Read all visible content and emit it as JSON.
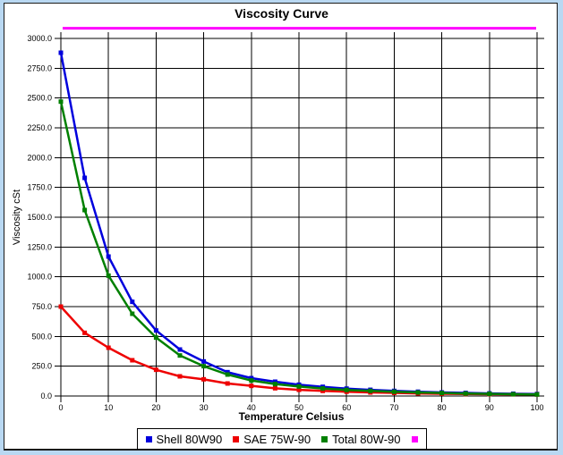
{
  "title": "Viscosity Curve",
  "colors": {
    "frame_background": "#b9d8f2",
    "panel_background": "#ffffff",
    "panel_border": "#1a1a1a",
    "grid": "#000000",
    "shell_blue": "#0000dd",
    "sae_red": "#ee0000",
    "total_green": "#008000",
    "limit_magenta": "#ff00ff"
  },
  "chart_data": {
    "type": "line",
    "title": "Viscosity Curve",
    "xlabel": "Temperature Celsius",
    "ylabel": "Viscosity cSt",
    "xlim": [
      0,
      100
    ],
    "ylim": [
      0,
      3000
    ],
    "grid": true,
    "legend_position": "bottom",
    "x_ticks": [
      0,
      10,
      20,
      30,
      40,
      50,
      60,
      70,
      80,
      90,
      100
    ],
    "x_tick_labels": [
      "0",
      "10",
      "20",
      "30",
      "40",
      "50",
      "60",
      "70",
      "80",
      "90",
      "100"
    ],
    "y_ticks": [
      0,
      250,
      500,
      750,
      1000,
      1250,
      1500,
      1750,
      2000,
      2250,
      2500,
      2750,
      3000
    ],
    "y_tick_labels": [
      "0.0",
      "250.0",
      "500.0",
      "750.0",
      "1000.0",
      "1250.0",
      "1500.0",
      "1750.0",
      "2000.0",
      "2250.0",
      "2500.0",
      "2750.0",
      "3000.0"
    ],
    "x": [
      0,
      5,
      10,
      15,
      20,
      25,
      30,
      35,
      40,
      45,
      50,
      55,
      60,
      65,
      70,
      75,
      80,
      85,
      90,
      95,
      100
    ],
    "series": [
      {
        "name": "Shell 80W90",
        "color": "#0000dd",
        "marker": "square",
        "values": [
          2880,
          1830,
          1170,
          790,
          550,
          390,
          290,
          200,
          150,
          120,
          95,
          77,
          62,
          52,
          43,
          36,
          30,
          26,
          22,
          19,
          17
        ]
      },
      {
        "name": "SAE 75W-90",
        "color": "#ee0000",
        "marker": "square",
        "values": [
          750,
          530,
          405,
          300,
          220,
          165,
          140,
          105,
          85,
          65,
          52,
          43,
          36,
          30,
          26,
          22,
          19,
          17,
          15,
          14,
          13
        ]
      },
      {
        "name": "Total 80W-90",
        "color": "#008000",
        "marker": "square",
        "values": [
          2470,
          1560,
          1010,
          690,
          490,
          340,
          250,
          180,
          130,
          100,
          80,
          63,
          51,
          43,
          36,
          30,
          25,
          21,
          18,
          15,
          13
        ]
      },
      {
        "name": "",
        "color": "#ff00ff",
        "marker": "square",
        "hline": true,
        "value": 3085
      }
    ]
  }
}
